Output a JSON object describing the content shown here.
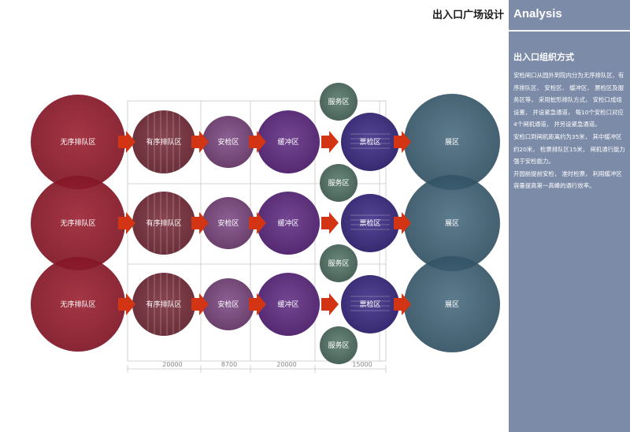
{
  "header": {
    "title": "出入口广场设计"
  },
  "side": {
    "analysis_label": "Analysis",
    "subtitle": "出入口组织方式",
    "paragraphs": [
      "安检闸口从园外到院内分为无序排队区、有序排队区、 安检区、 缓冲区、 票检区及服务区等， 采用蛇形排队方式， 安检口成组设置， 并设紧急通道， 每10个安检口对应4个闸机通道， 并另设紧急通道。",
      "安检口到闸机距离约为35米， 其中缓冲区约20米， 检票排队区15米， 闸机通行能力强于安检能力。",
      "开园前提前安检， 准时检票， 利用缓冲区容量提高第一高峰的通行效率。"
    ]
  },
  "diagram": {
    "rows": [
      {
        "zones": [
          "无序排队区",
          "有序排队区",
          "安检区",
          "缓冲区",
          "票检区",
          "展区"
        ]
      },
      {
        "zones": [
          "无序排队区",
          "有序排队区",
          "安检区",
          "缓冲区",
          "票检区",
          "展区"
        ]
      },
      {
        "zones": [
          "无序排队区",
          "有序排队区",
          "安检区",
          "缓冲区",
          "票检区",
          "展区"
        ]
      }
    ],
    "service_areas": [
      "服务区",
      "服务区",
      "服务区",
      "服务区"
    ],
    "dimensions": [
      "20000",
      "8700",
      "20000",
      "15000"
    ],
    "colors": {
      "disorder": "#8c1a28",
      "ordered": "#6e2632",
      "security": "#6e3c6c",
      "buffer": "#5a2a78",
      "ticket": "#3a2c78",
      "exhibit": "#2f5266",
      "service": "#3d5d52",
      "arrow": "#d23414",
      "panel": "#7b8ba8"
    }
  }
}
